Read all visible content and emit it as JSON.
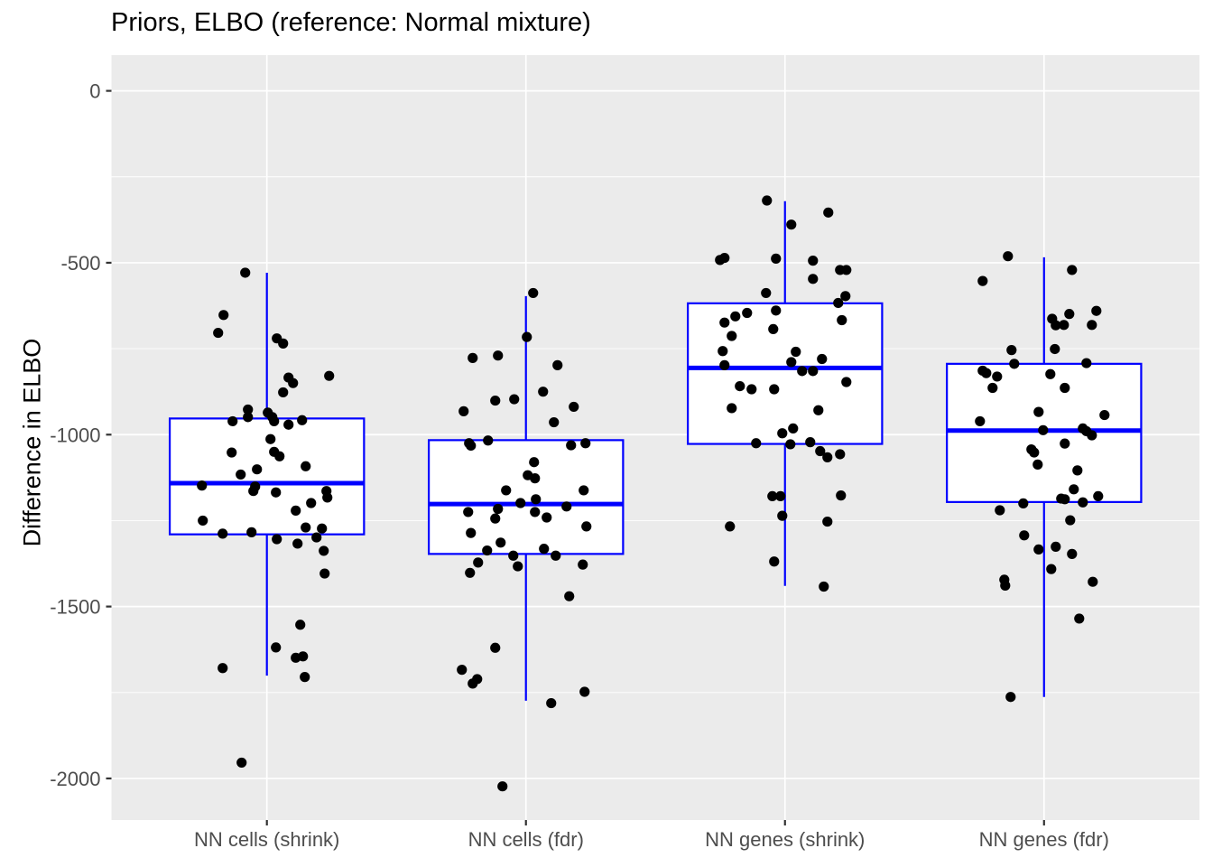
{
  "title": "Priors, ELBO (reference: Normal mixture)",
  "ylabel": "Difference in ELBO",
  "chart_data": {
    "type": "boxplot",
    "subtype": "boxplot-with-jittered-points",
    "title": "Priors, ELBO (reference: Normal mixture)",
    "ylabel": "Difference in ELBO",
    "categories": [
      "NN cells (shrink)",
      "NN cells (fdr)",
      "NN genes (shrink)",
      "NN genes (fdr)"
    ],
    "y_ticks": [
      0,
      -500,
      -1000,
      -1500,
      -2000
    ],
    "y_tick_labels": [
      "0",
      "-500",
      "-1000",
      "-1500",
      "-2000"
    ],
    "y_minor_ticks": [
      -250,
      -750,
      -1250,
      -1750
    ],
    "ylim": [
      -2121,
      104
    ],
    "grid": "major-and-minor-horizontal, major-vertical-at-categories",
    "legend": "none",
    "colors": {
      "box_stroke": "#0000ff",
      "box_fill": "#ffffff",
      "point": "#000000",
      "panel_background": "#ebebeb",
      "gridline": "#ffffff",
      "tick_label": "#4d4d4d",
      "tick_mark": "#333333",
      "title": "#000000"
    },
    "groups": [
      {
        "label": "NN cells (shrink)",
        "box": {
          "whisker_low": -1701,
          "q1": -1290,
          "median": -1141,
          "q3": -953,
          "whisker_high": -529
        },
        "points": [
          [
            -24,
            -529
          ],
          [
            -48,
            -652
          ],
          [
            -54,
            -704
          ],
          [
            11,
            -720
          ],
          [
            18,
            -735
          ],
          [
            24,
            -834
          ],
          [
            29,
            -850
          ],
          [
            69,
            -829
          ],
          [
            18,
            -877
          ],
          [
            -21,
            -927
          ],
          [
            -21,
            -949
          ],
          [
            -38,
            -961
          ],
          [
            1,
            -936
          ],
          [
            6,
            -949
          ],
          [
            8,
            -961
          ],
          [
            24,
            -971
          ],
          [
            39,
            -958
          ],
          [
            4,
            -1013
          ],
          [
            -39,
            -1052
          ],
          [
            8,
            -1050
          ],
          [
            14,
            -1063
          ],
          [
            43,
            -1092
          ],
          [
            -29,
            -1116
          ],
          [
            -11,
            -1101
          ],
          [
            -13,
            -1151
          ],
          [
            -15,
            -1164
          ],
          [
            -72,
            -1148
          ],
          [
            10,
            -1168
          ],
          [
            66,
            -1164
          ],
          [
            67,
            -1183
          ],
          [
            49,
            -1199
          ],
          [
            32,
            -1221
          ],
          [
            -71,
            -1250
          ],
          [
            -49,
            -1288
          ],
          [
            -17,
            -1284
          ],
          [
            43,
            -1270
          ],
          [
            61,
            -1273
          ],
          [
            55,
            -1299
          ],
          [
            11,
            -1304
          ],
          [
            34,
            -1317
          ],
          [
            63,
            -1338
          ],
          [
            64,
            -1404
          ],
          [
            37,
            -1553
          ],
          [
            10,
            -1619
          ],
          [
            32,
            -1649
          ],
          [
            40,
            -1645
          ],
          [
            -49,
            -1679
          ],
          [
            42,
            -1705
          ],
          [
            -28,
            -1954
          ]
        ]
      },
      {
        "label": "NN cells (fdr)",
        "box": {
          "whisker_low": -1774,
          "q1": -1347,
          "median": -1202,
          "q3": -1016,
          "whisker_high": -597
        },
        "points": [
          [
            8,
            -588
          ],
          [
            1,
            -716
          ],
          [
            -59,
            -777
          ],
          [
            -31,
            -770
          ],
          [
            35,
            -798
          ],
          [
            19,
            -875
          ],
          [
            -34,
            -901
          ],
          [
            -13,
            -897
          ],
          [
            53,
            -919
          ],
          [
            -69,
            -932
          ],
          [
            31,
            -964
          ],
          [
            -63,
            -1025
          ],
          [
            -61,
            -1032
          ],
          [
            -42,
            -1017
          ],
          [
            50,
            -1031
          ],
          [
            66,
            -1025
          ],
          [
            9,
            -1080
          ],
          [
            2,
            -1118
          ],
          [
            10,
            -1127
          ],
          [
            -22,
            -1162
          ],
          [
            64,
            -1162
          ],
          [
            -6,
            -1199
          ],
          [
            11,
            -1188
          ],
          [
            -64,
            -1225
          ],
          [
            -31,
            -1216
          ],
          [
            -34,
            -1244
          ],
          [
            10,
            -1225
          ],
          [
            23,
            -1241
          ],
          [
            45,
            -1209
          ],
          [
            67,
            -1267
          ],
          [
            -61,
            -1286
          ],
          [
            -28,
            -1314
          ],
          [
            -43,
            -1337
          ],
          [
            -14,
            -1352
          ],
          [
            20,
            -1332
          ],
          [
            33,
            -1352
          ],
          [
            63,
            -1378
          ],
          [
            -53,
            -1372
          ],
          [
            -62,
            -1402
          ],
          [
            -9,
            -1383
          ],
          [
            48,
            -1470
          ],
          [
            -34,
            -1620
          ],
          [
            -71,
            -1684
          ],
          [
            -59,
            -1724
          ],
          [
            -54,
            -1711
          ],
          [
            65,
            -1748
          ],
          [
            28,
            -1781
          ],
          [
            -26,
            -2023
          ]
        ]
      },
      {
        "label": "NN genes (shrink)",
        "box": {
          "whisker_low": -1440,
          "q1": -1027,
          "median": -806,
          "q3": -618,
          "whisker_high": -321
        },
        "points": [
          [
            -20,
            -319
          ],
          [
            48,
            -354
          ],
          [
            7,
            -389
          ],
          [
            -72,
            -492
          ],
          [
            -67,
            -486
          ],
          [
            -10,
            -488
          ],
          [
            31,
            -494
          ],
          [
            61,
            -521
          ],
          [
            68,
            -521
          ],
          [
            31,
            -547
          ],
          [
            -21,
            -588
          ],
          [
            67,
            -597
          ],
          [
            59,
            -617
          ],
          [
            -10,
            -639
          ],
          [
            -42,
            -646
          ],
          [
            -55,
            -656
          ],
          [
            -67,
            -674
          ],
          [
            63,
            -667
          ],
          [
            -13,
            -693
          ],
          [
            -59,
            -713
          ],
          [
            -69,
            -757
          ],
          [
            12,
            -759
          ],
          [
            7,
            -789
          ],
          [
            41,
            -780
          ],
          [
            -67,
            -798
          ],
          [
            19,
            -815
          ],
          [
            31,
            -815
          ],
          [
            68,
            -847
          ],
          [
            -50,
            -859
          ],
          [
            -37,
            -868
          ],
          [
            -12,
            -868
          ],
          [
            -59,
            -923
          ],
          [
            37,
            -929
          ],
          [
            9,
            -982
          ],
          [
            -3,
            -996
          ],
          [
            -32,
            -1025
          ],
          [
            6,
            -1028
          ],
          [
            28,
            -1022
          ],
          [
            39,
            -1048
          ],
          [
            47,
            -1066
          ],
          [
            61,
            -1057
          ],
          [
            -14,
            -1179
          ],
          [
            -5,
            -1179
          ],
          [
            62,
            -1177
          ],
          [
            -3,
            -1236
          ],
          [
            47,
            -1253
          ],
          [
            -61,
            -1267
          ],
          [
            -12,
            -1369
          ],
          [
            43,
            -1442
          ]
        ]
      },
      {
        "label": "NN genes (fdr)",
        "box": {
          "whisker_low": -1763,
          "q1": -1196,
          "median": -988,
          "q3": -794,
          "whisker_high": -484
        },
        "points": [
          [
            -40,
            -481
          ],
          [
            31,
            -521
          ],
          [
            -68,
            -553
          ],
          [
            9,
            -663
          ],
          [
            13,
            -682
          ],
          [
            22,
            -681
          ],
          [
            28,
            -649
          ],
          [
            58,
            -640
          ],
          [
            53,
            -681
          ],
          [
            -36,
            -754
          ],
          [
            12,
            -751
          ],
          [
            -33,
            -794
          ],
          [
            47,
            -792
          ],
          [
            -68,
            -814
          ],
          [
            -64,
            -821
          ],
          [
            -52,
            -831
          ],
          [
            -57,
            -864
          ],
          [
            7,
            -824
          ],
          [
            23,
            -864
          ],
          [
            -6,
            -934
          ],
          [
            67,
            -943
          ],
          [
            -71,
            -961
          ],
          [
            -1,
            -987
          ],
          [
            43,
            -982
          ],
          [
            47,
            -990
          ],
          [
            53,
            -1002
          ],
          [
            23,
            -1026
          ],
          [
            -14,
            -1043
          ],
          [
            -11,
            -1052
          ],
          [
            -7,
            -1087
          ],
          [
            37,
            -1104
          ],
          [
            33,
            -1159
          ],
          [
            19,
            -1186
          ],
          [
            23,
            -1188
          ],
          [
            60,
            -1179
          ],
          [
            43,
            -1197
          ],
          [
            -23,
            -1200
          ],
          [
            -49,
            -1220
          ],
          [
            29,
            -1249
          ],
          [
            -22,
            -1293
          ],
          [
            -6,
            -1334
          ],
          [
            13,
            -1326
          ],
          [
            31,
            -1347
          ],
          [
            8,
            -1391
          ],
          [
            -44,
            -1422
          ],
          [
            -43,
            -1439
          ],
          [
            54,
            -1428
          ],
          [
            39,
            -1535
          ],
          [
            -37,
            -1763
          ]
        ]
      }
    ]
  }
}
